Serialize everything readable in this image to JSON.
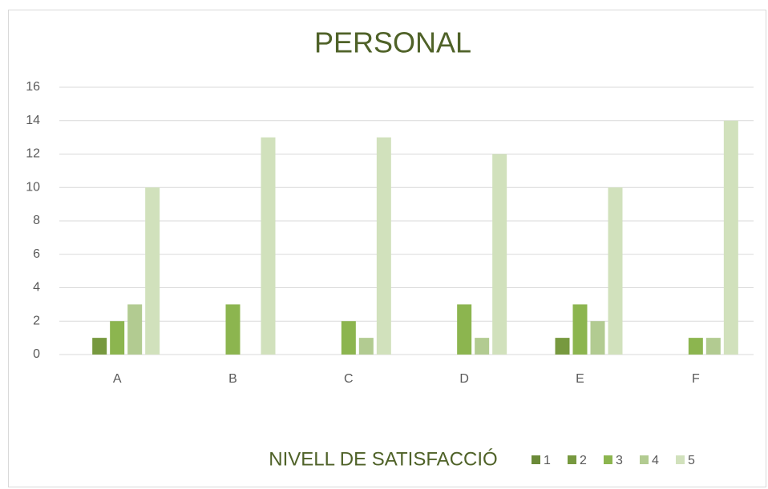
{
  "chart_data": {
    "type": "bar",
    "title": "PERSONAL",
    "legend_title": "NIVELL DE SATISFACCIÓ",
    "categories": [
      "A",
      "B",
      "C",
      "D",
      "E",
      "F"
    ],
    "series": [
      {
        "name": "1",
        "color": "#6b8a38",
        "values": [
          0,
          0,
          0,
          0,
          0,
          0
        ]
      },
      {
        "name": "2",
        "color": "#77993f",
        "values": [
          1,
          0,
          0,
          0,
          1,
          0
        ]
      },
      {
        "name": "3",
        "color": "#8cb54f",
        "values": [
          2,
          3,
          2,
          3,
          3,
          1
        ]
      },
      {
        "name": "4",
        "color": "#b2cb91",
        "values": [
          3,
          0,
          1,
          1,
          2,
          1
        ]
      },
      {
        "name": "5",
        "color": "#d1e1bc",
        "values": [
          10,
          13,
          13,
          12,
          10,
          14
        ]
      }
    ],
    "ylim": [
      0,
      16
    ],
    "yticks": [
      0,
      2,
      4,
      6,
      8,
      10,
      12,
      14,
      16
    ],
    "grid": true
  }
}
